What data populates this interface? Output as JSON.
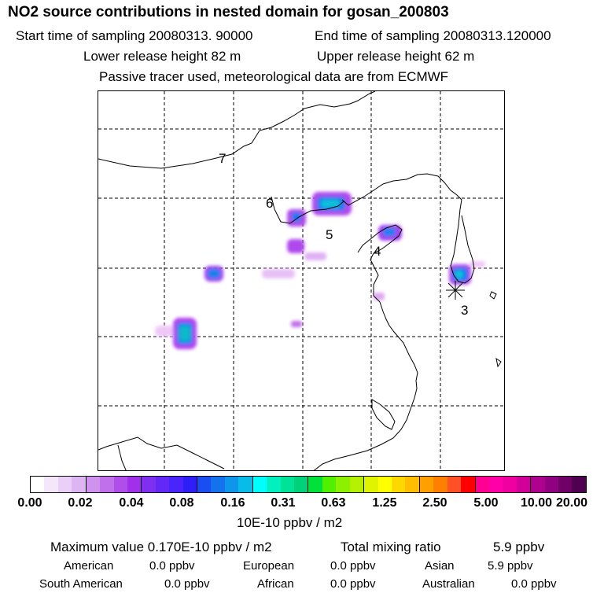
{
  "title": "NO2 source contributions in nested domain for gosan_200803",
  "header": {
    "start_time": "Start time of sampling 20080313. 90000",
    "end_time": "End time of sampling 20080313.120000",
    "lower_release": "Lower release height   82 m",
    "upper_release": "Upper release height   62 m",
    "tracer_note": "Passive tracer used, meteorological data are from ECMWF"
  },
  "map": {
    "region_labels": [
      "7",
      "6",
      "5",
      "4",
      "3"
    ],
    "receptor_marker": "asterisk",
    "grid": "dashed"
  },
  "colorbar": {
    "colors": [
      "#ffffff",
      "#f4e6fb",
      "#eacff7",
      "#deb5f3",
      "#cf93ee",
      "#c070eb",
      "#b04eea",
      "#a030ea",
      "#7f2ff0",
      "#6428f6",
      "#4a24fc",
      "#2e1ef8",
      "#1a4ef2",
      "#1472ee",
      "#0e96ea",
      "#08bcea",
      "#00ffff",
      "#00f0c0",
      "#00e296",
      "#00d27a",
      "#00e03a",
      "#50f000",
      "#8cf000",
      "#b4f000",
      "#e0f400",
      "#ffff00",
      "#ffd800",
      "#ffbe00",
      "#ffa000",
      "#ff8000",
      "#ff5028",
      "#ff0000",
      "#ff0090",
      "#ff00a8",
      "#f000a0",
      "#d00098",
      "#b00090",
      "#900080",
      "#700068",
      "#500050"
    ],
    "tick_labels": [
      "0.00",
      "0.02",
      "0.04",
      "0.08",
      "0.16",
      "0.31",
      "0.63",
      "1.25",
      "2.50",
      "5.00",
      "10.00",
      "20.00"
    ],
    "unit": "10E-10 ppbv / m2"
  },
  "stats": {
    "max_value": "Maximum value  0.170E-10 ppbv / m2",
    "total_mixing_label": "Total mixing ratio",
    "total_mixing_value": "5.9 ppbv",
    "american_label": "American",
    "american_value": "0.0 ppbv",
    "european_label": "European",
    "european_value": "0.0 ppbv",
    "asian_label": "Asian",
    "asian_value": "5.9 ppbv",
    "south_american_label": "South American",
    "south_american_value": "0.0 ppbv",
    "african_label": "African",
    "african_value": "0.0 ppbv",
    "australian_label": "Australian",
    "australian_value": "0.0 ppbv"
  }
}
